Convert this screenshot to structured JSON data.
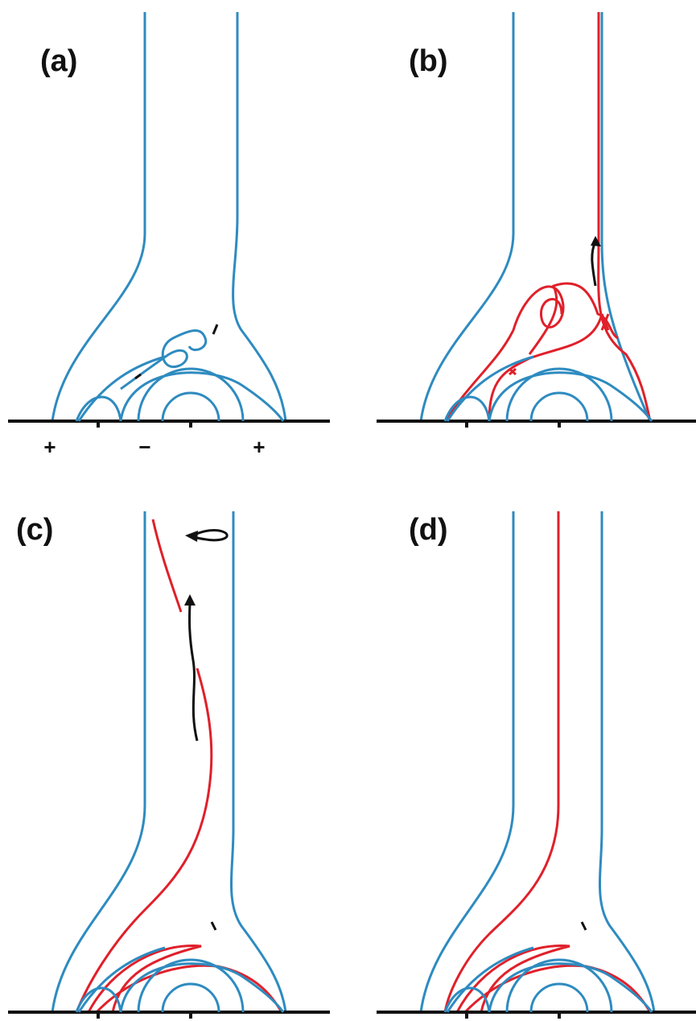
{
  "panels": [
    {
      "label": "(a)"
    },
    {
      "label": "(b)"
    },
    {
      "label": "(c)"
    },
    {
      "label": "(d)"
    }
  ],
  "signs": [
    "+",
    "−",
    "+"
  ]
}
